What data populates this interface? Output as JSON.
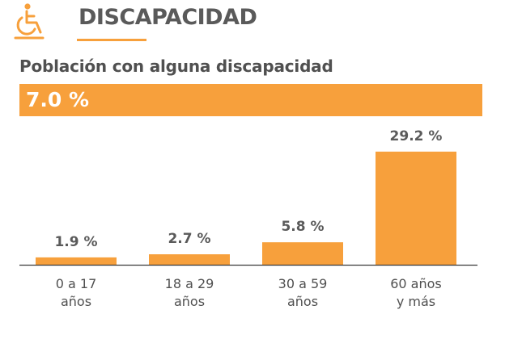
{
  "header": {
    "title": "DISCAPACIDAD",
    "icon": "wheelchair-icon",
    "accent_color": "#f7a03c"
  },
  "summary": {
    "label": "Población con alguna discapacidad",
    "value_text": "7.0 %",
    "value": 7.0
  },
  "chart_data": {
    "type": "bar",
    "title": "",
    "xlabel": "",
    "ylabel": "",
    "ylim": [
      0,
      30
    ],
    "grid": false,
    "bar_color": "#f7a03c",
    "categories": [
      [
        "0 a 17",
        "años"
      ],
      [
        "18 a 29",
        "años"
      ],
      [
        "30 a 59",
        "años"
      ],
      [
        "60 años",
        "y más"
      ]
    ],
    "values": [
      1.9,
      2.7,
      5.8,
      29.2
    ],
    "data_labels": [
      "1.9 %",
      "2.7 %",
      "5.8 %",
      "29.2 %"
    ]
  }
}
